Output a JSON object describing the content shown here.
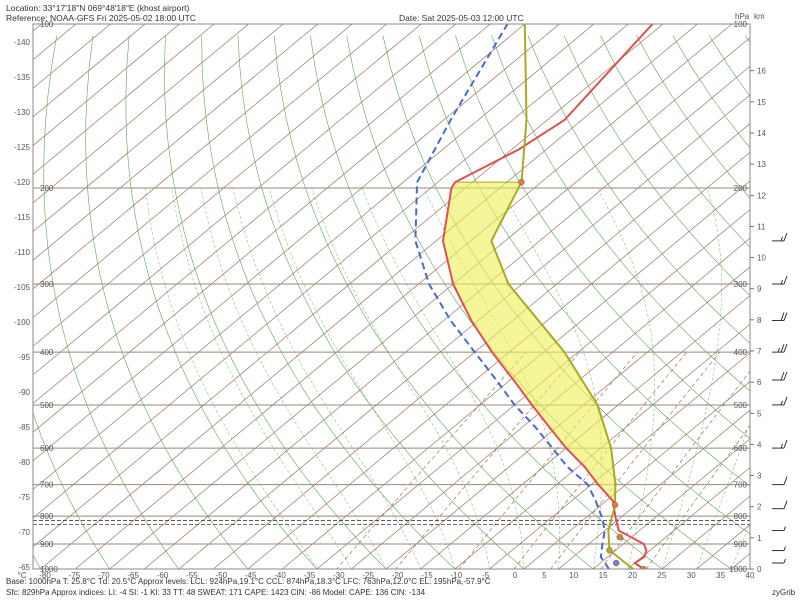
{
  "header": {
    "location": "Location: 33°17'18\"N  069°48'18\"E (khost airport)",
    "reference": "Reference: NOAA-GFS Fri 2025-05-02 18:00 UTC",
    "date": "Date: Sat 2025-05-03 12:00 UTC",
    "hpa_unit": "hPa",
    "km_unit": "km"
  },
  "footer": {
    "line1": "Base: 1000hPa  T: 25.8°C  Td: 20.5°C     Approx levels:  LCL: 924hPa,19.1°C    CCL: 874hPa,18.3°C    LFC: 763hPa,12.0°C    EL: 195hPa,-57.9°C",
    "line2": "Sfc: 829hPa       Approx indices:  LI: -4   SI: -1   KI: 33   TT: 48   SWEAT: 171    CAPE: 1423  CIN: -86         Model: CAPE: 136 CIN: -134",
    "brand": "zyGrib"
  },
  "chart_data": {
    "type": "line",
    "title": "",
    "xlabel": "°C",
    "ylabel": "",
    "x_ticks": [
      -80,
      -75,
      -70,
      -65,
      -60,
      -55,
      -50,
      -45,
      -40,
      -35,
      -30,
      -25,
      -20,
      -15,
      -10,
      -5,
      0,
      5,
      10,
      15,
      20,
      25,
      30,
      35,
      40
    ],
    "x_tick_labels": [
      "°C",
      "-80",
      "-75",
      "-70",
      "-65",
      "-60",
      "-55",
      "-50",
      "-45",
      "-40",
      "-35",
      "-30",
      "-25",
      "-20",
      "-15",
      "-10",
      "-5",
      "0",
      "5",
      "10",
      "15",
      "20",
      "25",
      "30",
      "35",
      "40"
    ],
    "left_ticks": [
      -140,
      -135,
      -130,
      -125,
      -120,
      -115,
      -110,
      -105,
      -100,
      -95,
      -90,
      -85,
      -80,
      -75,
      -70,
      -65
    ],
    "pressure_levels": [
      100,
      200,
      300,
      400,
      500,
      600,
      700,
      800,
      900,
      1000
    ],
    "altitude_km": [
      0,
      1,
      2,
      3,
      4,
      5,
      6,
      7,
      8,
      9,
      10,
      11,
      12,
      13,
      14,
      15,
      16
    ],
    "series": [
      {
        "color": "#e05050",
        "points": [
          [
            1000,
            27.3
          ],
          [
            975,
            25.0
          ],
          [
            950,
            25.3
          ],
          [
            925,
            24.5
          ],
          [
            900,
            23.0
          ],
          [
            850,
            17.0
          ],
          [
            800,
            14.0
          ],
          [
            750,
            11.0
          ],
          [
            700,
            6.0
          ],
          [
            650,
            1.0
          ],
          [
            600,
            -5.0
          ],
          [
            550,
            -11.0
          ],
          [
            500,
            -17.5
          ],
          [
            450,
            -24.5
          ],
          [
            400,
            -32.5
          ],
          [
            350,
            -41.0
          ],
          [
            300,
            -50.0
          ],
          [
            250,
            -59.0
          ],
          [
            200,
            -67.0
          ],
          [
            195,
            -67.5
          ],
          [
            170,
            -64.0
          ],
          [
            150,
            -62.5
          ],
          [
            100,
            -66.5
          ]
        ]
      },
      {
        "color": "#4a6ad0",
        "points": [
          [
            1000,
            22.3
          ],
          [
            950,
            19.0
          ],
          [
            900,
            17.0
          ],
          [
            850,
            15.0
          ],
          [
            800,
            12.0
          ],
          [
            750,
            8.5
          ],
          [
            700,
            4.5
          ],
          [
            650,
            -1.5
          ],
          [
            600,
            -7.0
          ],
          [
            550,
            -13.0
          ],
          [
            500,
            -20.0
          ],
          [
            450,
            -27.0
          ],
          [
            400,
            -35.0
          ],
          [
            350,
            -44.0
          ],
          [
            300,
            -53.5
          ],
          [
            250,
            -63.0
          ],
          [
            200,
            -72.0
          ],
          [
            195,
            -73.0
          ],
          [
            150,
            -79.0
          ],
          [
            100,
            -87.5
          ]
        ]
      },
      {
        "color": "#aaaa22",
        "points": [
          [
            1000,
            25.8
          ],
          [
            924,
            19.1
          ],
          [
            850,
            15.5
          ],
          [
            763,
            12.0
          ],
          [
            700,
            8.5
          ],
          [
            600,
            1.5
          ],
          [
            500,
            -8.0
          ],
          [
            400,
            -22.0
          ],
          [
            300,
            -42.0
          ],
          [
            250,
            -52.0
          ],
          [
            195,
            -57.9
          ],
          [
            150,
            -68.0
          ],
          [
            100,
            -85.0
          ]
        ]
      }
    ],
    "markers": [
      {
        "p": 1000,
        "t": 27.3,
        "color": "#e08030"
      },
      {
        "p": 975,
        "t": 22.3,
        "color": "#8080c0"
      },
      {
        "p": 924,
        "t": 19.1,
        "color": "#c0a030"
      },
      {
        "p": 874,
        "t": 18.3,
        "color": "#e08030"
      },
      {
        "p": 763,
        "t": 12.0,
        "color": "#e08030"
      },
      {
        "p": 195,
        "t": -57.9,
        "color": "#e08030"
      }
    ],
    "winds": [
      {
        "p": 975,
        "speed": 5
      },
      {
        "p": 925,
        "speed": 5
      },
      {
        "p": 850,
        "speed": 5
      },
      {
        "p": 775,
        "speed": 10
      },
      {
        "p": 700,
        "speed": 10
      },
      {
        "p": 600,
        "speed": 15
      },
      {
        "p": 500,
        "speed": 15
      },
      {
        "p": 450,
        "speed": 20
      },
      {
        "p": 400,
        "speed": 25
      },
      {
        "p": 350,
        "speed": 20
      },
      {
        "p": 300,
        "speed": 15
      },
      {
        "p": 250,
        "speed": 15
      }
    ]
  }
}
